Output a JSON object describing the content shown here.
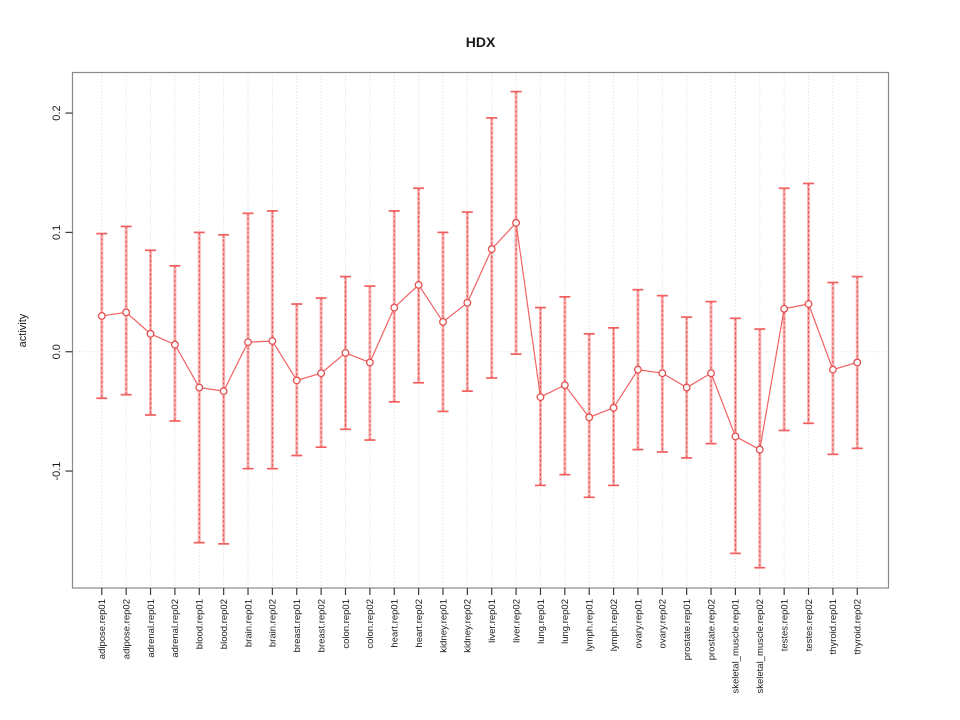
{
  "page": {
    "background": "#ffffff"
  },
  "chart_data": {
    "type": "line",
    "subtype": "points-with-error-bars",
    "title": "HDX",
    "xlabel": "",
    "ylabel": "activity",
    "ylim": [
      -0.198,
      0.234
    ],
    "yticks": [
      0.2,
      0.1,
      0.0,
      -0.1
    ],
    "ytick_labels": [
      "0.2",
      "0.1",
      "0.0",
      "-0.1"
    ],
    "grid": "vertical dotted gridline at each category; dotted horizontal line at 0",
    "legend": "none",
    "categories": [
      "adipose.rep01",
      "adipose.rep02",
      "adrenal.rep01",
      "adrenal.rep02",
      "blood.rep01",
      "blood.rep02",
      "brain.rep01",
      "brain.rep02",
      "breast.rep01",
      "breast.rep02",
      "colon.rep01",
      "colon.rep02",
      "heart.rep01",
      "heart.rep02",
      "kidney.rep01",
      "kidney.rep02",
      "liver.rep01",
      "liver.rep02",
      "lung.rep01",
      "lung.rep02",
      "lymph.rep01",
      "lymph.rep02",
      "ovary.rep01",
      "ovary.rep02",
      "prostate.rep01",
      "prostate.rep02",
      "skeletal_muscle.rep01",
      "skeletal_muscle.rep02",
      "testes.rep01",
      "testes.rep02",
      "thyroid.rep01",
      "thyroid.rep02"
    ],
    "series": [
      {
        "name": "activity",
        "values": [
          0.03,
          0.033,
          0.015,
          0.006,
          -0.03,
          -0.033,
          0.008,
          0.009,
          -0.024,
          -0.018,
          -0.001,
          -0.009,
          0.037,
          0.056,
          0.025,
          0.041,
          0.086,
          0.108,
          -0.038,
          -0.028,
          -0.055,
          -0.047,
          -0.015,
          -0.018,
          -0.03,
          -0.018,
          -0.071,
          -0.082,
          0.036,
          0.04,
          -0.015,
          -0.009
        ],
        "lower": [
          -0.039,
          -0.036,
          -0.053,
          -0.058,
          -0.16,
          -0.161,
          -0.098,
          -0.098,
          -0.087,
          -0.08,
          -0.065,
          -0.074,
          -0.042,
          -0.026,
          -0.05,
          -0.033,
          -0.022,
          -0.002,
          -0.112,
          -0.103,
          -0.122,
          -0.112,
          -0.082,
          -0.084,
          -0.089,
          -0.077,
          -0.169,
          -0.181,
          -0.066,
          -0.06,
          -0.086,
          -0.081
        ],
        "upper": [
          0.099,
          0.105,
          0.085,
          0.072,
          0.1,
          0.098,
          0.116,
          0.118,
          0.04,
          0.045,
          0.063,
          0.055,
          0.118,
          0.137,
          0.1,
          0.117,
          0.196,
          0.218,
          0.037,
          0.046,
          0.015,
          0.02,
          0.052,
          0.047,
          0.029,
          0.042,
          0.028,
          0.019,
          0.137,
          0.141,
          0.058,
          0.063
        ]
      }
    ],
    "colors": {
      "point_stroke": "#e44f4f",
      "series_line": "#f26262",
      "error_bar_light": "rgba(244,106,106,0.50)",
      "error_bar_core": "rgba(228,64,64,0.85)",
      "error_cap": "#f15e5e",
      "grid_line": "#d9d9d9",
      "zero_line": "#dcdcdc",
      "box_border": "#8a8a8a",
      "tick": "#3a3a3a",
      "text": "#1a1a1a"
    }
  }
}
